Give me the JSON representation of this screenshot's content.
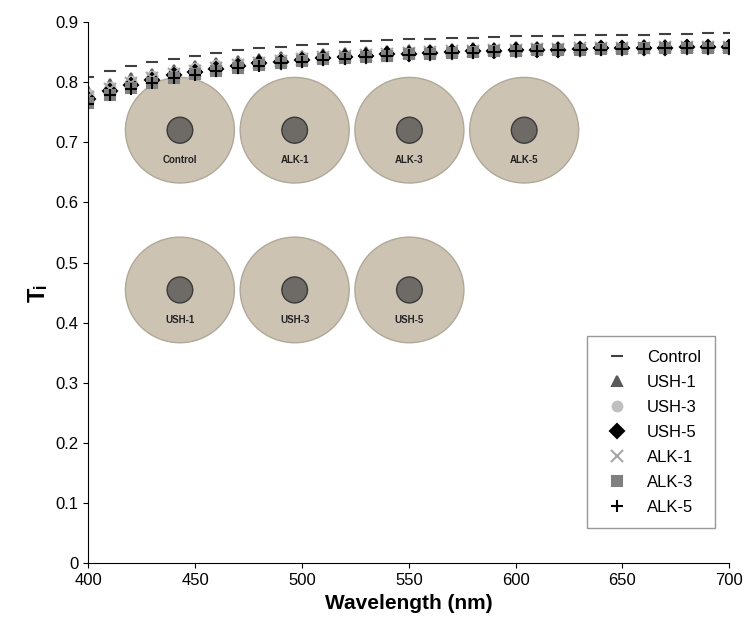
{
  "chart_data": {
    "type": "scatter",
    "x_label": "Wavelength (nm)",
    "y_label": "Tᵢ",
    "x": [
      400,
      410,
      420,
      430,
      440,
      450,
      460,
      470,
      480,
      490,
      500,
      510,
      520,
      530,
      540,
      550,
      560,
      570,
      580,
      590,
      600,
      610,
      620,
      630,
      640,
      650,
      660,
      670,
      680,
      690,
      700
    ],
    "series": [
      {
        "name": "Control",
        "color": "#404040",
        "marker": "dash",
        "values": [
          0.808,
          0.818,
          0.826,
          0.833,
          0.839,
          0.844,
          0.849,
          0.853,
          0.856,
          0.859,
          0.862,
          0.864,
          0.866,
          0.868,
          0.87,
          0.871,
          0.872,
          0.873,
          0.874,
          0.875,
          0.876,
          0.877,
          0.877,
          0.878,
          0.878,
          0.879,
          0.879,
          0.88,
          0.88,
          0.881,
          0.881
        ]
      },
      {
        "name": "USH-1",
        "color": "#595959",
        "marker": "triangle",
        "values": [
          0.785,
          0.797,
          0.806,
          0.814,
          0.82,
          0.826,
          0.831,
          0.835,
          0.838,
          0.841,
          0.844,
          0.846,
          0.848,
          0.85,
          0.851,
          0.853,
          0.854,
          0.855,
          0.856,
          0.857,
          0.858,
          0.858,
          0.859,
          0.859,
          0.86,
          0.86,
          0.861,
          0.861,
          0.862,
          0.862,
          0.862
        ]
      },
      {
        "name": "USH-3",
        "color": "#bfbfbf",
        "marker": "circle",
        "values": [
          0.78,
          0.792,
          0.802,
          0.81,
          0.817,
          0.823,
          0.828,
          0.832,
          0.835,
          0.838,
          0.841,
          0.843,
          0.845,
          0.847,
          0.849,
          0.85,
          0.851,
          0.852,
          0.853,
          0.854,
          0.855,
          0.856,
          0.856,
          0.857,
          0.857,
          0.858,
          0.858,
          0.859,
          0.859,
          0.859,
          0.86
        ]
      },
      {
        "name": "USH-5",
        "color": "#000000",
        "marker": "diamond",
        "values": [
          0.772,
          0.785,
          0.795,
          0.804,
          0.811,
          0.817,
          0.822,
          0.827,
          0.831,
          0.834,
          0.837,
          0.84,
          0.842,
          0.844,
          0.846,
          0.847,
          0.849,
          0.85,
          0.851,
          0.852,
          0.853,
          0.854,
          0.854,
          0.855,
          0.856,
          0.856,
          0.857,
          0.857,
          0.858,
          0.858,
          0.858
        ]
      },
      {
        "name": "ALK-1",
        "color": "#a6a6a6",
        "marker": "x",
        "values": [
          0.775,
          0.788,
          0.798,
          0.806,
          0.813,
          0.819,
          0.824,
          0.829,
          0.832,
          0.835,
          0.838,
          0.841,
          0.843,
          0.845,
          0.847,
          0.848,
          0.85,
          0.851,
          0.852,
          0.853,
          0.854,
          0.855,
          0.855,
          0.856,
          0.856,
          0.857,
          0.857,
          0.858,
          0.858,
          0.859,
          0.859
        ]
      },
      {
        "name": "ALK-3",
        "color": "#808080",
        "marker": "square",
        "values": [
          0.766,
          0.779,
          0.79,
          0.799,
          0.807,
          0.813,
          0.819,
          0.824,
          0.828,
          0.832,
          0.835,
          0.838,
          0.84,
          0.842,
          0.844,
          0.846,
          0.847,
          0.848,
          0.85,
          0.851,
          0.852,
          0.853,
          0.853,
          0.854,
          0.855,
          0.855,
          0.856,
          0.856,
          0.857,
          0.857,
          0.857
        ]
      },
      {
        "name": "ALK-5",
        "color": "#000000",
        "marker": "plus",
        "values": [
          0.764,
          0.778,
          0.789,
          0.798,
          0.806,
          0.812,
          0.818,
          0.823,
          0.827,
          0.831,
          0.834,
          0.837,
          0.839,
          0.841,
          0.843,
          0.845,
          0.846,
          0.848,
          0.849,
          0.85,
          0.851,
          0.852,
          0.853,
          0.854,
          0.854,
          0.855,
          0.855,
          0.856,
          0.856,
          0.857,
          0.857
        ]
      }
    ],
    "xlim": [
      400,
      700
    ],
    "xticks": [
      400,
      450,
      500,
      550,
      600,
      650,
      700
    ],
    "ylim": [
      0,
      0.9
    ],
    "yticks": [
      0,
      0.1,
      0.2,
      0.3,
      0.4,
      0.5,
      0.6,
      0.7,
      0.8,
      0.9
    ],
    "grid": false,
    "legend": "lower right"
  }
}
